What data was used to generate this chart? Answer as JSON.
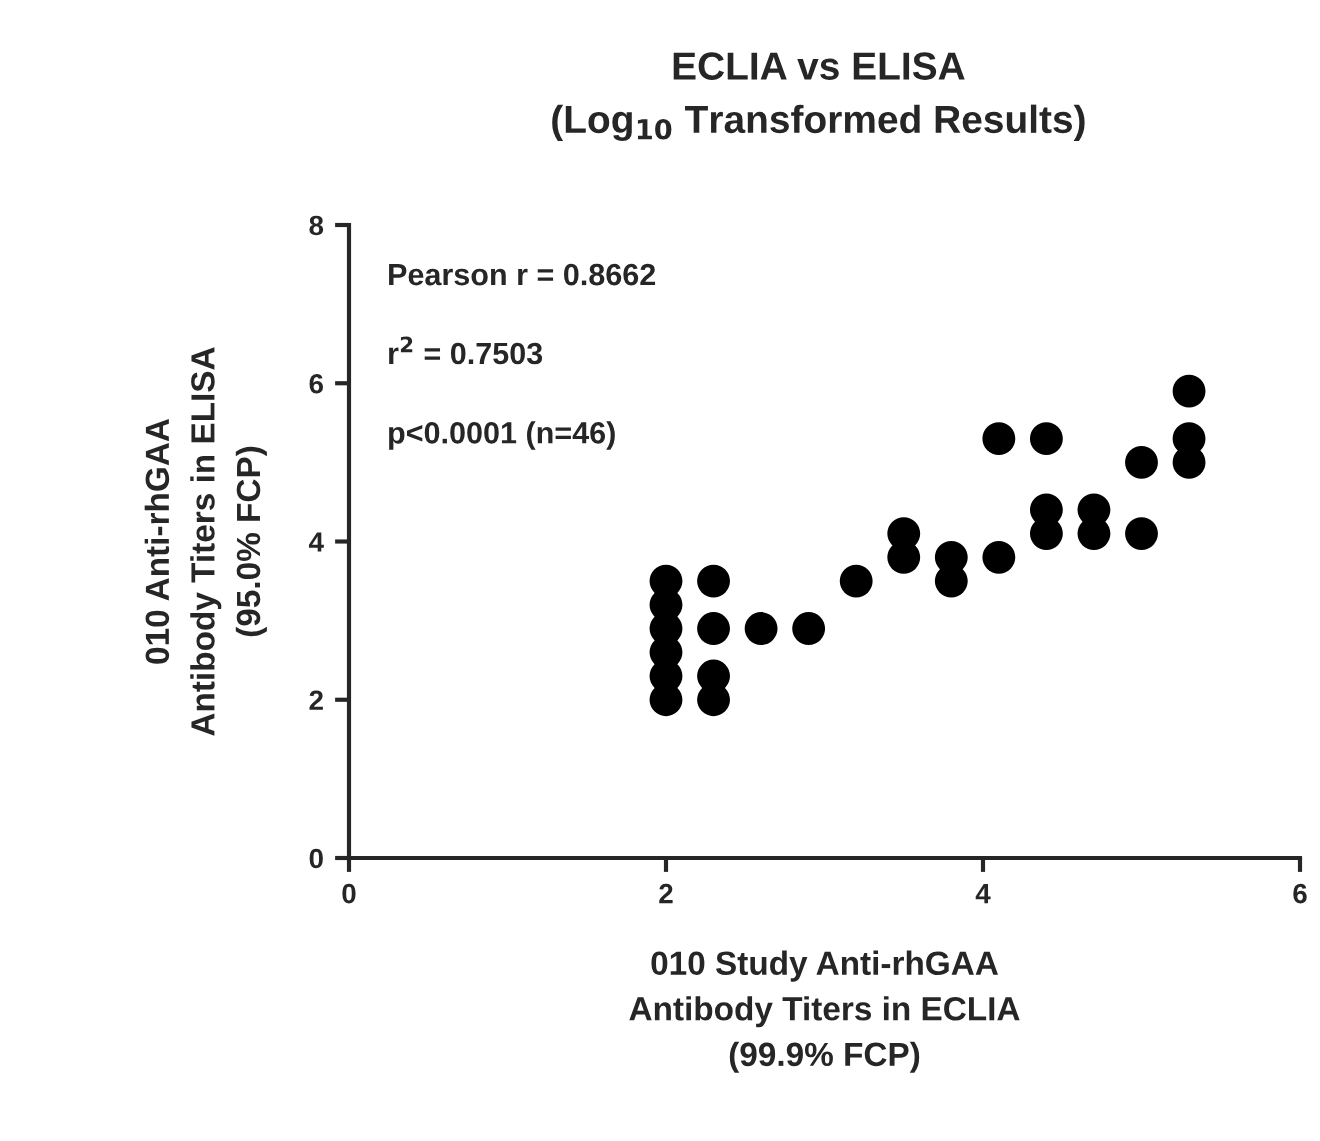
{
  "chart_data": {
    "type": "scatter",
    "title": "ECLIA vs ELISA\n(Log$_{10}$ Transformed Results)",
    "xlabel": "010 Study Anti-rhGAA\nAntibody Titers in ECLIA\n(99.9% FCP)",
    "ylabel": "010 Anti-rhGAA\nAntibody Titers in ELISA\n(95.0% FCP)",
    "x": [
      2.0,
      2.0,
      2.0,
      2.0,
      2.0,
      2.0,
      2.3,
      2.3,
      2.3,
      2.3,
      2.6,
      2.9,
      3.2,
      3.5,
      3.5,
      3.8,
      3.8,
      4.1,
      4.1,
      4.4,
      4.4,
      4.4,
      4.7,
      4.7,
      5.0,
      5.0,
      5.3,
      5.3,
      5.3
    ],
    "series": [
      {
        "color": "#000000",
        "values": [
          3.5,
          3.2,
          2.9,
          2.6,
          2.3,
          2.0,
          3.5,
          2.9,
          2.3,
          2.0,
          2.9,
          2.9,
          3.5,
          4.1,
          3.8,
          3.8,
          3.5,
          5.3,
          3.8,
          5.3,
          4.4,
          4.1,
          4.4,
          4.1,
          5.0,
          4.1,
          5.9,
          5.3,
          5.0
        ]
      }
    ],
    "marker": "circle",
    "grid": false,
    "legend": false,
    "xlim": [
      0,
      6
    ],
    "xticks": [
      0,
      2,
      4,
      6
    ],
    "ylim": [
      0,
      8
    ],
    "yticks": [
      0,
      2,
      4,
      6,
      8
    ],
    "annotations": [
      "Pearson r = 0.8662",
      "r$^{2}$ = 0.7503",
      "p<0.0001 (n=46)"
    ]
  }
}
